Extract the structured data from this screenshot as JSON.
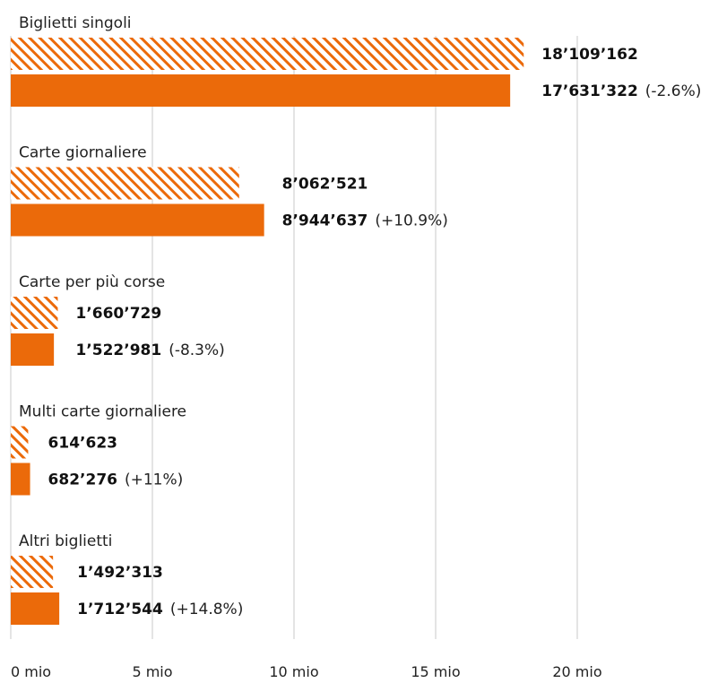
{
  "chart_data": {
    "type": "bar",
    "orientation": "horizontal",
    "unit": "mio",
    "xlim": [
      0,
      20
    ],
    "xticks": [
      {
        "value": 0,
        "label": "0 mio"
      },
      {
        "value": 5,
        "label": "5 mio"
      },
      {
        "value": 10,
        "label": "10 mio"
      },
      {
        "value": 15,
        "label": "15 mio"
      },
      {
        "value": 20,
        "label": "20 mio"
      }
    ],
    "grid": true,
    "legend": "none",
    "categories": [
      {
        "label": "Biglietti singoli",
        "previous": {
          "value": 18.109162,
          "label": "18’109’162"
        },
        "current": {
          "value": 17.631322,
          "label": "17’631’322",
          "change": "(-2.6%)"
        }
      },
      {
        "label": "Carte giornaliere",
        "previous": {
          "value": 8.062521,
          "label": "8’062’521"
        },
        "current": {
          "value": 8.944637,
          "label": "8’944’637",
          "change": "(+10.9%)"
        }
      },
      {
        "label": "Carte per più corse",
        "previous": {
          "value": 1.660729,
          "label": "1’660’729"
        },
        "current": {
          "value": 1.522981,
          "label": "1’522’981",
          "change": "(-8.3%)"
        }
      },
      {
        "label": "Multi carte giornaliere",
        "previous": {
          "value": 0.614623,
          "label": "614’623"
        },
        "current": {
          "value": 0.682276,
          "label": "682’276",
          "change": "(+11%)"
        }
      },
      {
        "label": "Altri biglietti",
        "previous": {
          "value": 1.492313,
          "label": "1’492’313"
        },
        "current": {
          "value": 1.712544,
          "label": "1’712’544",
          "change": "(+14.8%)"
        }
      }
    ],
    "colors": {
      "current": "#eb6a0a",
      "previous_hatch": "#eb6a0a",
      "previous_background": "#ffffff",
      "grid": "#c8c8c8"
    },
    "series_style": {
      "previous": "hatched",
      "current": "solid"
    }
  }
}
